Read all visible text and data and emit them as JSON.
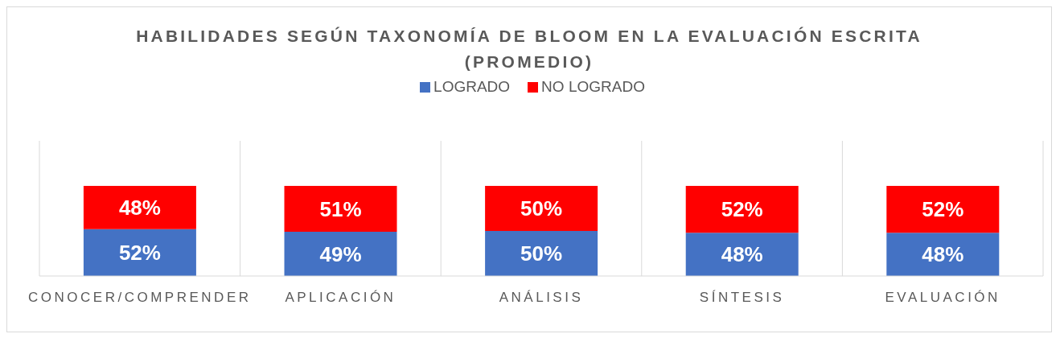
{
  "chart_data": {
    "type": "bar",
    "title": "HABILIDADES SEGÚN TAXONOMÍA DE BLOOM EN LA EVALUACIÓN ESCRITA (PROMEDIO)",
    "categories": [
      "CONOCER/COMPRENDER",
      "APLICACIÓN",
      "ANÁLISIS",
      "SÍNTESIS",
      "EVALUACIÓN"
    ],
    "stacked": true,
    "ylim": [
      0,
      150
    ],
    "grid": "x",
    "legend": "top",
    "series": [
      {
        "name": "LOGRADO",
        "color": "#4472c4",
        "values": [
          52,
          49,
          50,
          48,
          48
        ],
        "value_labels": [
          "52%",
          "49%",
          "50%",
          "48%",
          "48%"
        ]
      },
      {
        "name": "NO LOGRADO",
        "color": "#ff0000",
        "values": [
          48,
          51,
          50,
          52,
          52
        ],
        "value_labels": [
          "48%",
          "51%",
          "50%",
          "52%",
          "52%"
        ]
      }
    ]
  }
}
